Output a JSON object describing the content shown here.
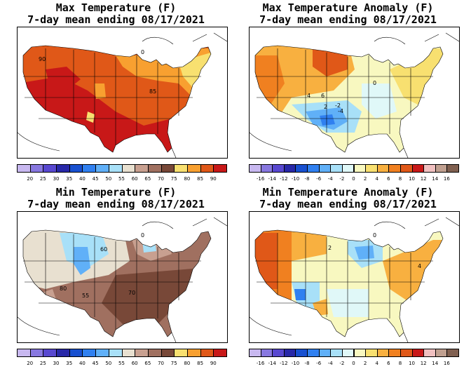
{
  "panels": [
    {
      "id": "max-temp",
      "title_line1": "Max Temperature (F)",
      "title_line2": "7-day mean ending 08/17/2021",
      "legend_ticks": [
        "20",
        "25",
        "30",
        "35",
        "40",
        "45",
        "50",
        "55",
        "60",
        "65",
        "70",
        "75",
        "80",
        "85",
        "90"
      ],
      "legend_colors": [
        "#c8b8f0",
        "#8878e0",
        "#5848d0",
        "#2828a8",
        "#1850d0",
        "#3080f0",
        "#60b0f8",
        "#a8e0f8",
        "#e8e0d0",
        "#c8a090",
        "#a07060",
        "#784838",
        "#f8e070",
        "#f8a030",
        "#e05818",
        "#c81818"
      ],
      "contour_labels": [
        "90",
        "85",
        "0"
      ]
    },
    {
      "id": "max-anom",
      "title_line1": "Max Temperature Anomaly (F)",
      "title_line2": "7-day mean ending 08/17/2021",
      "legend_ticks": [
        "-16",
        "-14",
        "-12",
        "-10",
        "-8",
        "-6",
        "-4",
        "-2",
        "0",
        "2",
        "4",
        "6",
        "8",
        "10",
        "12",
        "14",
        "16"
      ],
      "legend_colors": [
        "#c8b8f0",
        "#8878e0",
        "#5848d0",
        "#2828a8",
        "#1850d0",
        "#3080f0",
        "#60b0f8",
        "#a8e0f8",
        "#e0f8f8",
        "#f8f8c0",
        "#f8e070",
        "#f8b040",
        "#f08020",
        "#e05818",
        "#c81818",
        "#f0c0c0",
        "#c0a090",
        "#806050"
      ],
      "contour_labels": [
        "4",
        "6",
        "2",
        "-2",
        "-4",
        "0"
      ]
    },
    {
      "id": "min-temp",
      "title_line1": "Min Temperature (F)",
      "title_line2": "7-day mean ending 08/17/2021",
      "legend_ticks": [
        "20",
        "25",
        "30",
        "35",
        "40",
        "45",
        "50",
        "55",
        "60",
        "65",
        "70",
        "75",
        "80",
        "85",
        "90"
      ],
      "legend_colors": [
        "#c8b8f0",
        "#8878e0",
        "#5848d0",
        "#2828a8",
        "#1850d0",
        "#3080f0",
        "#60b0f8",
        "#a8e0f8",
        "#e8e0d0",
        "#c8a090",
        "#a07060",
        "#784838",
        "#f8e070",
        "#f8a030",
        "#e05818",
        "#c81818"
      ],
      "contour_labels": [
        "60",
        "55",
        "70",
        "80",
        "0"
      ]
    },
    {
      "id": "min-anom",
      "title_line1": "Min Temperature Anomaly (F)",
      "title_line2": "7-day mean ending 08/17/2021",
      "legend_ticks": [
        "-16",
        "-14",
        "-12",
        "-10",
        "-8",
        "-6",
        "-4",
        "-2",
        "0",
        "2",
        "4",
        "6",
        "8",
        "10",
        "12",
        "14",
        "16"
      ],
      "legend_colors": [
        "#c8b8f0",
        "#8878e0",
        "#5848d0",
        "#2828a8",
        "#1850d0",
        "#3080f0",
        "#60b0f8",
        "#a8e0f8",
        "#e0f8f8",
        "#f8f8c0",
        "#f8e070",
        "#f8b040",
        "#f08020",
        "#e05818",
        "#c81818",
        "#f0c0c0",
        "#c0a090",
        "#806050"
      ],
      "contour_labels": [
        "4",
        "2",
        "0"
      ]
    }
  ]
}
